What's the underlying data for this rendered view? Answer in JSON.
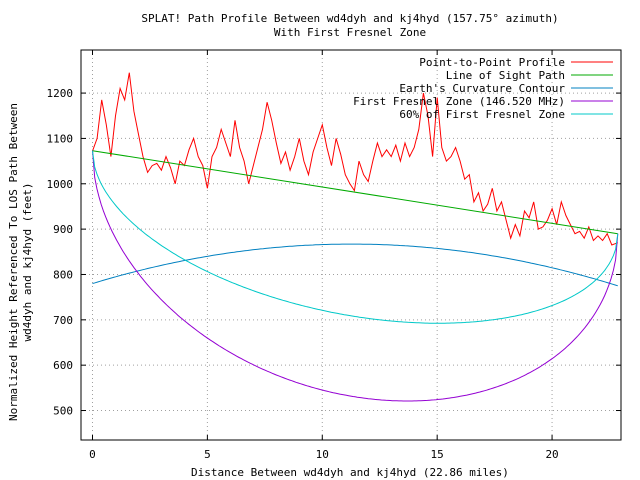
{
  "chart_data": {
    "type": "line",
    "title": "SPLAT! Path Profile Between wd4dyh and kj4hyd (157.75° azimuth)",
    "subtitle": "With First Fresnel Zone",
    "xlabel": "Distance Between wd4dyh and kj4hyd (22.86 miles)",
    "ylabel_line1": "Normalized Height Referenced To LOS Path Between",
    "ylabel_line2": "wd4dyh and kj4hyd (feet)",
    "xlim": [
      -0.5,
      23.0
    ],
    "ylim": [
      435,
      1295
    ],
    "x_ticks": [
      0,
      5,
      10,
      15,
      20
    ],
    "y_ticks": [
      500,
      600,
      700,
      800,
      900,
      1000,
      1100,
      1200
    ],
    "grid": true,
    "legend_position": "top-right",
    "series": [
      {
        "name": "Point-to-Point Profile",
        "color": "#ff0000",
        "x": [
          0,
          0.2,
          0.4,
          0.6,
          0.8,
          1.0,
          1.2,
          1.4,
          1.6,
          1.8,
          2.0,
          2.2,
          2.4,
          2.6,
          2.8,
          3.0,
          3.2,
          3.4,
          3.6,
          3.8,
          4.0,
          4.2,
          4.4,
          4.6,
          4.8,
          5.0,
          5.2,
          5.4,
          5.6,
          5.8,
          6.0,
          6.2,
          6.4,
          6.6,
          6.8,
          7.0,
          7.2,
          7.4,
          7.6,
          7.8,
          8.0,
          8.2,
          8.4,
          8.6,
          8.8,
          9.0,
          9.2,
          9.4,
          9.6,
          9.8,
          10.0,
          10.2,
          10.4,
          10.6,
          10.8,
          11.0,
          11.2,
          11.4,
          11.6,
          11.8,
          12.0,
          12.2,
          12.4,
          12.6,
          12.8,
          13.0,
          13.2,
          13.4,
          13.6,
          13.8,
          14.0,
          14.2,
          14.4,
          14.6,
          14.8,
          15.0,
          15.2,
          15.4,
          15.6,
          15.8,
          16.0,
          16.2,
          16.4,
          16.6,
          16.8,
          17.0,
          17.2,
          17.4,
          17.6,
          17.8,
          18.0,
          18.2,
          18.4,
          18.6,
          18.8,
          19.0,
          19.2,
          19.4,
          19.6,
          19.8,
          20.0,
          20.2,
          20.4,
          20.6,
          20.8,
          21.0,
          21.2,
          21.4,
          21.6,
          21.8,
          22.0,
          22.2,
          22.4,
          22.6,
          22.86
        ],
        "y": [
          1072,
          1100,
          1185,
          1130,
          1060,
          1150,
          1210,
          1185,
          1245,
          1160,
          1110,
          1060,
          1025,
          1040,
          1045,
          1030,
          1060,
          1035,
          1000,
          1050,
          1040,
          1075,
          1100,
          1060,
          1040,
          990,
          1060,
          1080,
          1120,
          1090,
          1060,
          1140,
          1080,
          1050,
          1000,
          1040,
          1080,
          1120,
          1180,
          1140,
          1090,
          1045,
          1070,
          1030,
          1060,
          1100,
          1050,
          1020,
          1070,
          1100,
          1130,
          1080,
          1040,
          1100,
          1065,
          1020,
          1000,
          985,
          1050,
          1020,
          1005,
          1050,
          1090,
          1060,
          1075,
          1060,
          1085,
          1050,
          1090,
          1060,
          1080,
          1120,
          1200,
          1150,
          1060,
          1190,
          1080,
          1050,
          1060,
          1080,
          1050,
          1010,
          1020,
          960,
          980,
          940,
          955,
          990,
          940,
          960,
          920,
          880,
          910,
          885,
          940,
          925,
          960,
          900,
          905,
          920,
          945,
          910,
          960,
          930,
          910,
          890,
          895,
          880,
          905,
          875,
          885,
          875,
          890,
          865,
          870
        ]
      },
      {
        "name": "Line of Sight Path",
        "color": "#00aa00",
        "x": [
          0,
          22.86
        ],
        "y": [
          1073,
          890
        ]
      },
      {
        "name": "Earth's Curvature Contour",
        "color": "#0080c0",
        "type": "parabola",
        "endpoints": [
          [
            0,
            780
          ],
          [
            22.86,
            775
          ]
        ],
        "peak": [
          11.43,
          867
        ]
      },
      {
        "name": "First Fresnel Zone (146.520 MHz)",
        "color": "#9400d3",
        "type": "fresnel",
        "lower_extreme": 521,
        "at": 13.7
      },
      {
        "name": "60% of First Fresnel Zone",
        "color": "#00c8c8",
        "type": "fresnel",
        "lower_extreme": 693,
        "at": 14.4
      }
    ]
  }
}
